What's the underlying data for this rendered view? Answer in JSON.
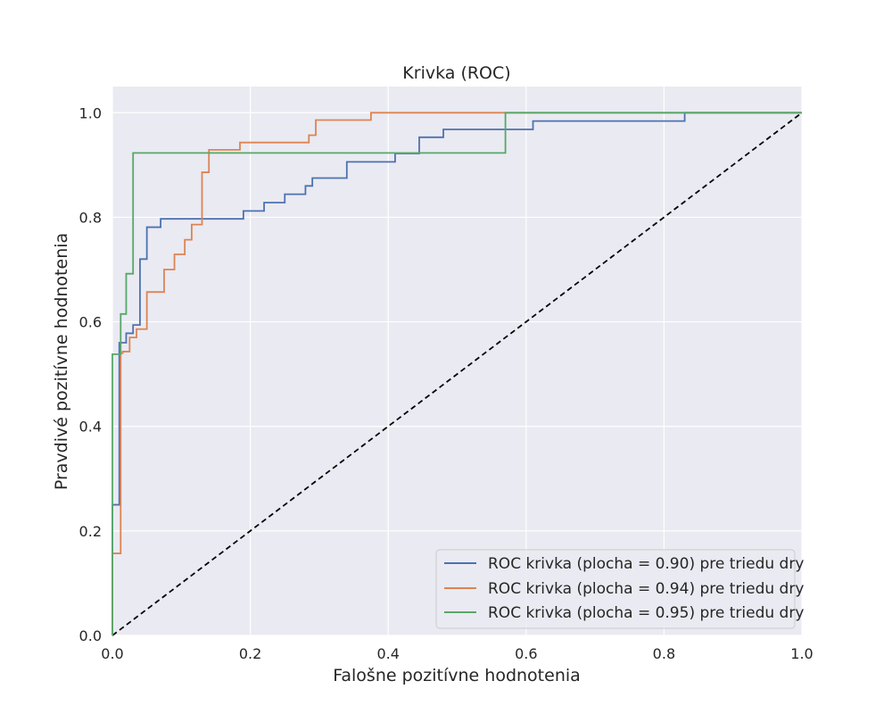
{
  "chart_data": {
    "type": "line",
    "title": "Krivka (ROC)",
    "xlabel": "Falošne pozitívne hodnotenia",
    "ylabel": "Pravdivé pozitívne hodnotenia",
    "xlim": [
      0.0,
      1.0
    ],
    "ylim": [
      0.0,
      1.05
    ],
    "xticks": [
      "0.0",
      "0.2",
      "0.4",
      "0.6",
      "0.8",
      "1.0"
    ],
    "yticks": [
      "0.0",
      "0.2",
      "0.4",
      "0.6",
      "0.8",
      "1.0"
    ],
    "grid": true,
    "legend_position": "lower-right",
    "diagonal": {
      "x": [
        0,
        1
      ],
      "y": [
        0,
        1
      ],
      "color": "#000000",
      "style": "dashed"
    },
    "series": [
      {
        "name": "ROC krivka (plocha = 0.90) pre triedu dry",
        "color": "#4c72b0",
        "x": [
          0.0,
          0.0,
          0.01,
          0.01,
          0.02,
          0.02,
          0.03,
          0.03,
          0.04,
          0.04,
          0.05,
          0.05,
          0.07,
          0.07,
          0.11,
          0.11,
          0.19,
          0.19,
          0.22,
          0.22,
          0.25,
          0.25,
          0.28,
          0.28,
          0.29,
          0.29,
          0.34,
          0.34,
          0.41,
          0.41,
          0.445,
          0.445,
          0.48,
          0.48,
          0.61,
          0.61,
          0.83,
          0.83,
          1.0
        ],
        "y": [
          0.0,
          0.25,
          0.25,
          0.56,
          0.56,
          0.578,
          0.578,
          0.594,
          0.594,
          0.72,
          0.72,
          0.781,
          0.781,
          0.797,
          0.797,
          0.797,
          0.797,
          0.812,
          0.812,
          0.828,
          0.828,
          0.844,
          0.844,
          0.86,
          0.86,
          0.875,
          0.875,
          0.906,
          0.906,
          0.922,
          0.922,
          0.953,
          0.953,
          0.968,
          0.968,
          0.984,
          0.984,
          1.0,
          1.0
        ]
      },
      {
        "name": "ROC krivka (plocha = 0.94) pre triedu dry",
        "color": "#dd8452",
        "x": [
          0.0,
          0.0,
          0.012,
          0.012,
          0.015,
          0.015,
          0.025,
          0.025,
          0.035,
          0.035,
          0.05,
          0.05,
          0.075,
          0.075,
          0.09,
          0.09,
          0.105,
          0.105,
          0.115,
          0.115,
          0.13,
          0.13,
          0.14,
          0.14,
          0.185,
          0.185,
          0.285,
          0.285,
          0.295,
          0.295,
          0.375,
          0.375,
          1.0
        ],
        "y": [
          0.0,
          0.157,
          0.157,
          0.54,
          0.54,
          0.543,
          0.543,
          0.57,
          0.57,
          0.586,
          0.586,
          0.657,
          0.657,
          0.7,
          0.7,
          0.729,
          0.729,
          0.757,
          0.757,
          0.786,
          0.786,
          0.886,
          0.886,
          0.929,
          0.929,
          0.943,
          0.943,
          0.957,
          0.957,
          0.986,
          0.986,
          1.0,
          1.0
        ]
      },
      {
        "name": "ROC krivka (plocha = 0.95) pre triedu dry",
        "color": "#55a868",
        "x": [
          0.0,
          0.0,
          0.012,
          0.012,
          0.02,
          0.02,
          0.03,
          0.03,
          0.57,
          0.57,
          1.0
        ],
        "y": [
          0.0,
          0.538,
          0.538,
          0.615,
          0.615,
          0.692,
          0.692,
          0.923,
          0.923,
          1.0,
          1.0
        ]
      }
    ]
  }
}
